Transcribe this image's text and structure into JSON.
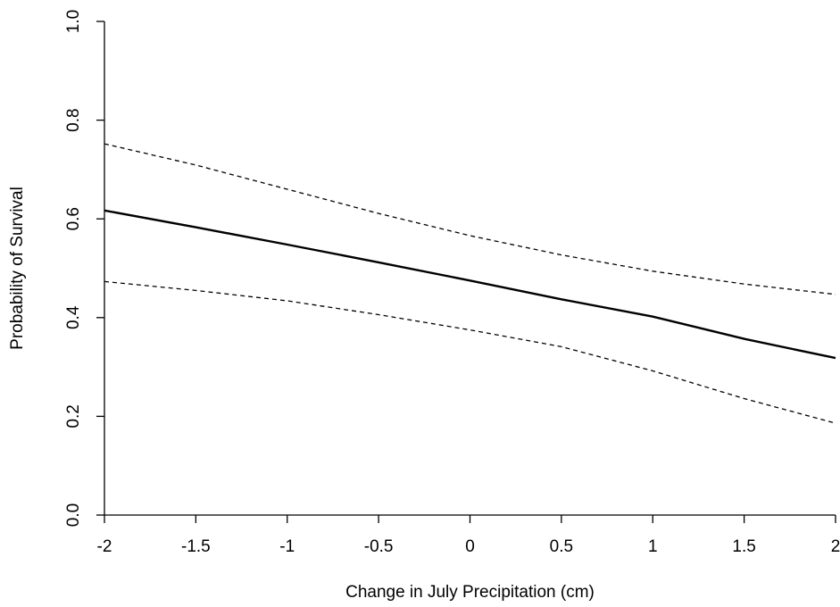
{
  "chart_data": {
    "type": "line",
    "title": "",
    "xlabel": "Change in July Precipitation (cm)",
    "ylabel": "Probability of Survival",
    "xlim": [
      -2,
      2
    ],
    "ylim": [
      0,
      1
    ],
    "x_ticks": [
      -2,
      -1.5,
      -1,
      -0.5,
      0,
      0.5,
      1,
      1.5,
      2
    ],
    "x_tick_labels": [
      "-2",
      "-1.5",
      "-1",
      "-0.5",
      "0",
      "0.5",
      "1",
      "1.5",
      "2"
    ],
    "y_ticks": [
      0,
      0.2,
      0.4,
      0.6,
      0.8,
      1
    ],
    "y_tick_labels": [
      "0.0",
      "0.2",
      "0.4",
      "0.6",
      "0.8",
      "1.0"
    ],
    "grid": false,
    "x": [
      -2,
      -1.5,
      -1,
      -0.5,
      0,
      0.5,
      1,
      1.5,
      2
    ],
    "series": [
      {
        "values": [
          0.617,
          0.583,
          0.548,
          0.512,
          0.475,
          0.437,
          0.402,
          0.357,
          0.318
        ],
        "style": "solid"
      },
      {
        "values": [
          0.752,
          0.709,
          0.66,
          0.611,
          0.566,
          0.527,
          0.494,
          0.468,
          0.447
        ],
        "style": "dashed"
      },
      {
        "values": [
          0.473,
          0.455,
          0.434,
          0.406,
          0.375,
          0.341,
          0.292,
          0.236,
          0.186
        ],
        "style": "dashed"
      }
    ]
  }
}
